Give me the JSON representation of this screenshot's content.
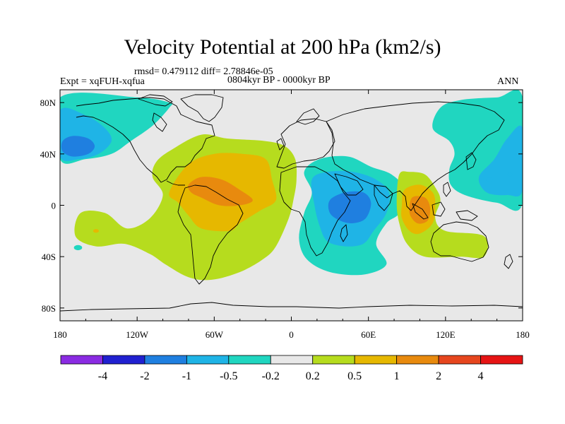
{
  "header": {
    "title": "Velocity Potential at 200 hPa (km2/s)",
    "stats": "rmsd= 0.479112 diff= 2.78846e-05",
    "experiment": "Expt = xqFUH-xqfua",
    "period": "0804kyr BP - 0000kyr BP",
    "season": "ANN"
  },
  "axes": {
    "lat_labels": [
      "80N",
      "40N",
      "0",
      "40S",
      "80S"
    ],
    "lat_values": [
      80,
      40,
      0,
      -40,
      -80
    ],
    "lon_labels": [
      "180",
      "120W",
      "60W",
      "0",
      "60E",
      "120E",
      "180"
    ],
    "lon_values": [
      -180,
      -120,
      -60,
      0,
      60,
      120,
      180
    ],
    "lat_range": [
      -90,
      90
    ],
    "lon_range": [
      -180,
      180
    ]
  },
  "colorbar": {
    "labels": [
      "-4",
      "-2",
      "-1",
      "-0.5",
      "-0.2",
      "0.2",
      "0.5",
      "1",
      "2",
      "4"
    ],
    "colors": [
      "#8a2be2",
      "#2020d0",
      "#1f7fe0",
      "#1fb4e6",
      "#20d6c0",
      "#e8e8e8",
      "#b6dc1e",
      "#e6b800",
      "#e88a0e",
      "#e6461e",
      "#e61414"
    ]
  },
  "chart_data": {
    "type": "contour-map",
    "variable": "Velocity potential anomaly at 200 hPa",
    "units": "km2/s",
    "levels": [
      -4,
      -2,
      -1,
      -0.5,
      -0.2,
      0.2,
      0.5,
      1,
      2,
      4
    ],
    "regions": [
      {
        "name": "arctic-north-pacific-low",
        "band": "-0.5 to -0.2",
        "color_index": 4,
        "poly": [
          [
            -180,
            84
          ],
          [
            -120,
            84
          ],
          [
            -95,
            80
          ],
          [
            -95,
            76
          ],
          [
            -108,
            62
          ],
          [
            -125,
            50
          ],
          [
            -140,
            40
          ],
          [
            -160,
            36
          ],
          [
            -180,
            36
          ]
        ]
      },
      {
        "name": "east-pacific-low",
        "band": "-1 to -0.5",
        "color_index": 3,
        "poly": [
          [
            -180,
            74
          ],
          [
            -160,
            70
          ],
          [
            -145,
            60
          ],
          [
            -140,
            50
          ],
          [
            -150,
            40
          ],
          [
            -165,
            36
          ],
          [
            -180,
            38
          ]
        ]
      },
      {
        "name": "east-pacific-core",
        "band": "-2 to -1",
        "color_index": 2,
        "poly": [
          [
            -170,
            54
          ],
          [
            -158,
            52
          ],
          [
            -153,
            46
          ],
          [
            -158,
            40
          ],
          [
            -170,
            38
          ],
          [
            -178,
            42
          ],
          [
            -178,
            50
          ]
        ]
      },
      {
        "name": "west-pacific-east-asia-low",
        "band": "-0.5 to -0.2",
        "color_index": 4,
        "poly": [
          [
            180,
            84
          ],
          [
            160,
            84
          ],
          [
            132,
            82
          ],
          [
            116,
            76
          ],
          [
            110,
            60
          ],
          [
            123,
            50
          ],
          [
            127,
            40
          ],
          [
            123,
            28
          ],
          [
            124,
            16
          ],
          [
            135,
            8
          ],
          [
            160,
            2
          ],
          [
            180,
            2
          ]
        ]
      },
      {
        "name": "west-pacific-core",
        "band": "-1 to -0.5",
        "color_index": 3,
        "poly": [
          [
            180,
            60
          ],
          [
            168,
            52
          ],
          [
            158,
            36
          ],
          [
            146,
            22
          ],
          [
            152,
            10
          ],
          [
            168,
            8
          ],
          [
            180,
            12
          ]
        ]
      },
      {
        "name": "americas-atlantic-high",
        "band": "0.2 to 0.5",
        "color_index": 6,
        "poly": [
          [
            -105,
            34
          ],
          [
            -92,
            44
          ],
          [
            -70,
            55
          ],
          [
            -50,
            52
          ],
          [
            -20,
            50
          ],
          [
            -5,
            46
          ],
          [
            3,
            36
          ],
          [
            4,
            20
          ],
          [
            2,
            6
          ],
          [
            -2,
            -10
          ],
          [
            -12,
            -32
          ],
          [
            -22,
            -42
          ],
          [
            -40,
            -52
          ],
          [
            -62,
            -58
          ],
          [
            -80,
            -56
          ],
          [
            -98,
            -46
          ],
          [
            -110,
            -38
          ],
          [
            -130,
            -30
          ],
          [
            -152,
            -32
          ],
          [
            -168,
            -24
          ],
          [
            -164,
            -6
          ],
          [
            -145,
            -6
          ],
          [
            -128,
            -18
          ],
          [
            -110,
            -10
          ],
          [
            -100,
            8
          ],
          [
            -108,
            22
          ]
        ]
      },
      {
        "name": "americas-atlantic-mid",
        "band": "0.5 to 1",
        "color_index": 7,
        "poly": [
          [
            -95,
            10
          ],
          [
            -80,
            32
          ],
          [
            -60,
            40
          ],
          [
            -38,
            40
          ],
          [
            -20,
            36
          ],
          [
            -15,
            20
          ],
          [
            -12,
            4
          ],
          [
            -24,
            -4
          ],
          [
            -40,
            -14
          ],
          [
            -48,
            -20
          ],
          [
            -70,
            -18
          ],
          [
            -80,
            -8
          ],
          [
            -88,
            2
          ]
        ]
      },
      {
        "name": "americas-atlantic-core",
        "band": "1 to 2",
        "color_index": 8,
        "poly": [
          [
            -80,
            16
          ],
          [
            -70,
            22
          ],
          [
            -54,
            20
          ],
          [
            -40,
            12
          ],
          [
            -30,
            4
          ],
          [
            -40,
            0
          ],
          [
            -56,
            0
          ],
          [
            -70,
            6
          ],
          [
            -78,
            10
          ]
        ]
      },
      {
        "name": "indian-ocean-low",
        "band": "-0.5 to -0.2",
        "color_index": 4,
        "poly": [
          [
            10,
            26
          ],
          [
            22,
            36
          ],
          [
            44,
            38
          ],
          [
            62,
            30
          ],
          [
            78,
            24
          ],
          [
            88,
            12
          ],
          [
            84,
            -6
          ],
          [
            74,
            -14
          ],
          [
            66,
            -30
          ],
          [
            74,
            -46
          ],
          [
            56,
            -54
          ],
          [
            30,
            -52
          ],
          [
            12,
            -42
          ],
          [
            6,
            -26
          ],
          [
            10,
            -6
          ],
          [
            16,
            10
          ]
        ]
      },
      {
        "name": "indian-ocean-mid",
        "band": "-1 to -0.5",
        "color_index": 3,
        "poly": [
          [
            16,
            20
          ],
          [
            28,
            26
          ],
          [
            48,
            26
          ],
          [
            66,
            20
          ],
          [
            76,
            10
          ],
          [
            74,
            -6
          ],
          [
            64,
            -20
          ],
          [
            56,
            -30
          ],
          [
            42,
            -32
          ],
          [
            28,
            -28
          ],
          [
            22,
            -16
          ],
          [
            18,
            0
          ]
        ]
      },
      {
        "name": "indian-ocean-core",
        "band": "-2 to -1",
        "color_index": 2,
        "poly": [
          [
            30,
            4
          ],
          [
            42,
            10
          ],
          [
            56,
            10
          ],
          [
            62,
            2
          ],
          [
            58,
            -10
          ],
          [
            48,
            -14
          ],
          [
            38,
            -12
          ],
          [
            30,
            -6
          ]
        ]
      },
      {
        "name": "maritime-continent-high",
        "band": "0.2 to 0.5",
        "color_index": 6,
        "poly": [
          [
            84,
            24
          ],
          [
            92,
            26
          ],
          [
            104,
            24
          ],
          [
            112,
            14
          ],
          [
            116,
            4
          ],
          [
            112,
            -10
          ],
          [
            120,
            -20
          ],
          [
            150,
            -24
          ],
          [
            150,
            -40
          ],
          [
            132,
            -40
          ],
          [
            104,
            -40
          ],
          [
            90,
            -30
          ],
          [
            84,
            -14
          ],
          [
            82,
            2
          ]
        ]
      },
      {
        "name": "maritime-continent-mid",
        "band": "0.5 to 1",
        "color_index": 7,
        "poly": [
          [
            88,
            12
          ],
          [
            100,
            16
          ],
          [
            110,
            10
          ],
          [
            112,
            0
          ],
          [
            110,
            -14
          ],
          [
            100,
            -22
          ],
          [
            92,
            -20
          ],
          [
            86,
            -10
          ],
          [
            86,
            0
          ]
        ]
      },
      {
        "name": "maritime-continent-core",
        "band": "1 to 2",
        "color_index": 8,
        "poly": [
          [
            94,
            6
          ],
          [
            104,
            6
          ],
          [
            108,
            -2
          ],
          [
            106,
            -12
          ],
          [
            98,
            -14
          ],
          [
            92,
            -6
          ]
        ]
      }
    ],
    "dots": [
      {
        "name": "west-pacific-blue-patch-1",
        "color_index": 3,
        "lon": 154,
        "lat": 20,
        "r": 1.6
      },
      {
        "name": "west-pacific-blue-patch-2",
        "color_index": 3,
        "lon": 170,
        "lat": 24,
        "r": 1.2
      },
      {
        "name": "south-pacific-cyan-patch",
        "color_index": 4,
        "lon": -166,
        "lat": -33,
        "r": 2.0
      },
      {
        "name": "south-pacific-orange-patch",
        "color_index": 7,
        "lon": -152,
        "lat": -20,
        "r": 1.4
      }
    ]
  }
}
